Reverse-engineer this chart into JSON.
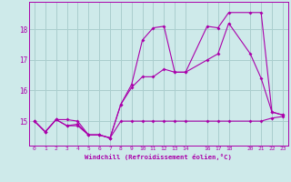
{
  "xlabel": "Windchill (Refroidissement éolien,°C)",
  "background_color": "#ceeaea",
  "grid_color": "#aacece",
  "line_color": "#aa00aa",
  "x_ticks": [
    0,
    1,
    2,
    3,
    4,
    5,
    6,
    7,
    8,
    9,
    10,
    11,
    12,
    13,
    14,
    16,
    17,
    18,
    20,
    21,
    22,
    23
  ],
  "y_ticks": [
    15,
    16,
    17,
    18
  ],
  "xlim": [
    -0.5,
    23.5
  ],
  "ylim": [
    14.2,
    18.9
  ],
  "line1_x": [
    0,
    1,
    2,
    3,
    4,
    5,
    6,
    7,
    8,
    9,
    10,
    11,
    12,
    13,
    14,
    16,
    17,
    18,
    20,
    21,
    22,
    23
  ],
  "line1_y": [
    15.0,
    14.65,
    15.05,
    14.85,
    14.85,
    14.55,
    14.55,
    14.45,
    15.0,
    15.0,
    15.0,
    15.0,
    15.0,
    15.0,
    15.0,
    15.0,
    15.0,
    15.0,
    15.0,
    15.0,
    15.1,
    15.15
  ],
  "line2_x": [
    0,
    1,
    2,
    3,
    4,
    5,
    6,
    7,
    8,
    9,
    10,
    11,
    12,
    13,
    14,
    16,
    17,
    18,
    20,
    21,
    22,
    23
  ],
  "line2_y": [
    15.0,
    14.65,
    15.05,
    14.85,
    14.9,
    14.55,
    14.55,
    14.45,
    15.55,
    16.1,
    16.45,
    16.45,
    16.7,
    16.6,
    16.6,
    17.0,
    17.2,
    18.2,
    17.2,
    16.4,
    15.3,
    15.2
  ],
  "line3_x": [
    0,
    1,
    2,
    3,
    4,
    5,
    6,
    7,
    8,
    9,
    10,
    11,
    12,
    13,
    14,
    16,
    17,
    18,
    20,
    21,
    22,
    23
  ],
  "line3_y": [
    15.0,
    14.65,
    15.05,
    15.05,
    15.0,
    14.55,
    14.55,
    14.45,
    15.55,
    16.2,
    17.65,
    18.05,
    18.1,
    16.6,
    16.6,
    18.1,
    18.05,
    18.55,
    18.55,
    18.55,
    15.3,
    15.2
  ]
}
